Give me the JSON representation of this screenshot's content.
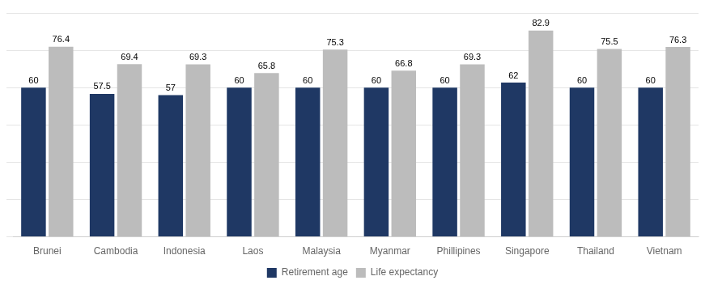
{
  "chart_data": {
    "type": "bar",
    "categories": [
      "Brunei",
      "Cambodia",
      "Indonesia",
      "Laos",
      "Malaysia",
      "Myanmar",
      "Phillipines",
      "Singapore",
      "Thailand",
      "Vietnam"
    ],
    "series": [
      {
        "name": "Retirement age",
        "color": "#1F3864",
        "values": [
          60,
          57.5,
          57,
          60,
          60,
          60,
          60,
          62,
          60,
          60
        ]
      },
      {
        "name": "Life expectancy",
        "color": "#BCBCBC",
        "values": [
          76.4,
          69.4,
          69.3,
          65.8,
          75.3,
          66.8,
          69.3,
          82.9,
          75.5,
          76.3
        ]
      }
    ],
    "ylim": [
      0,
      90
    ],
    "yticks": [
      0,
      15,
      30,
      45,
      60,
      75,
      90
    ],
    "grid": true,
    "tick_labels": "x",
    "data_labels": true,
    "legend": "bottom"
  }
}
